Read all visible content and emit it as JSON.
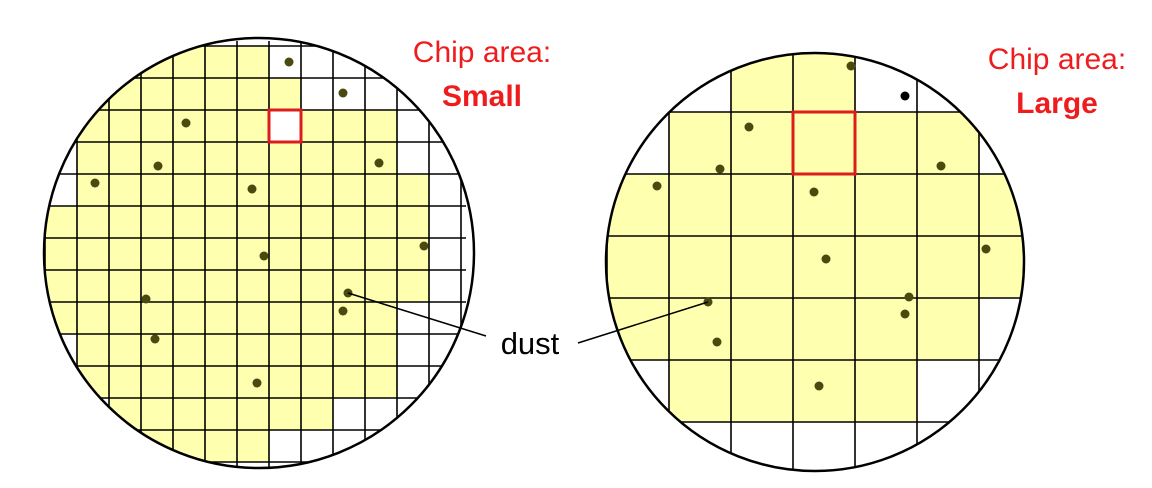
{
  "colors": {
    "chip_fill": "#ffffb0",
    "grid_line": "#000000",
    "highlight": "#dd1c1c",
    "dust_dot": "#4a4a10",
    "label_red": "#ee1c1c"
  },
  "wafer_small": {
    "title": "Chip area:",
    "size_label": "Small",
    "grid": {
      "cols": 13,
      "rows": 13
    },
    "good_chips": [
      [
        2,
        0
      ],
      [
        3,
        0
      ],
      [
        4,
        0
      ],
      [
        5,
        0
      ],
      [
        6,
        0
      ],
      [
        1,
        1
      ],
      [
        2,
        1
      ],
      [
        3,
        1
      ],
      [
        4,
        1
      ],
      [
        5,
        1
      ],
      [
        6,
        1
      ],
      [
        7,
        1
      ],
      [
        1,
        2
      ],
      [
        2,
        2
      ],
      [
        3,
        2
      ],
      [
        4,
        2
      ],
      [
        5,
        2
      ],
      [
        6,
        2
      ],
      [
        8,
        2
      ],
      [
        9,
        2
      ],
      [
        10,
        2
      ],
      [
        1,
        3
      ],
      [
        2,
        3
      ],
      [
        3,
        3
      ],
      [
        4,
        3
      ],
      [
        5,
        3
      ],
      [
        6,
        3
      ],
      [
        7,
        3
      ],
      [
        8,
        3
      ],
      [
        9,
        3
      ],
      [
        10,
        3
      ],
      [
        1,
        4
      ],
      [
        2,
        4
      ],
      [
        3,
        4
      ],
      [
        4,
        4
      ],
      [
        5,
        4
      ],
      [
        6,
        4
      ],
      [
        7,
        4
      ],
      [
        8,
        4
      ],
      [
        9,
        4
      ],
      [
        10,
        4
      ],
      [
        11,
        4
      ],
      [
        0,
        5
      ],
      [
        1,
        5
      ],
      [
        2,
        5
      ],
      [
        3,
        5
      ],
      [
        4,
        5
      ],
      [
        5,
        5
      ],
      [
        6,
        5
      ],
      [
        7,
        5
      ],
      [
        8,
        5
      ],
      [
        9,
        5
      ],
      [
        10,
        5
      ],
      [
        11,
        5
      ],
      [
        0,
        6
      ],
      [
        1,
        6
      ],
      [
        2,
        6
      ],
      [
        3,
        6
      ],
      [
        4,
        6
      ],
      [
        5,
        6
      ],
      [
        6,
        6
      ],
      [
        7,
        6
      ],
      [
        8,
        6
      ],
      [
        9,
        6
      ],
      [
        10,
        6
      ],
      [
        11,
        6
      ],
      [
        0,
        7
      ],
      [
        1,
        7
      ],
      [
        2,
        7
      ],
      [
        3,
        7
      ],
      [
        4,
        7
      ],
      [
        5,
        7
      ],
      [
        6,
        7
      ],
      [
        7,
        7
      ],
      [
        8,
        7
      ],
      [
        9,
        7
      ],
      [
        10,
        7
      ],
      [
        11,
        7
      ],
      [
        0,
        8
      ],
      [
        1,
        8
      ],
      [
        2,
        8
      ],
      [
        3,
        8
      ],
      [
        4,
        8
      ],
      [
        5,
        8
      ],
      [
        6,
        8
      ],
      [
        7,
        8
      ],
      [
        8,
        8
      ],
      [
        9,
        8
      ],
      [
        10,
        8
      ],
      [
        1,
        9
      ],
      [
        2,
        9
      ],
      [
        3,
        9
      ],
      [
        4,
        9
      ],
      [
        5,
        9
      ],
      [
        6,
        9
      ],
      [
        7,
        9
      ],
      [
        8,
        9
      ],
      [
        9,
        9
      ],
      [
        10,
        9
      ],
      [
        1,
        10
      ],
      [
        2,
        10
      ],
      [
        3,
        10
      ],
      [
        4,
        10
      ],
      [
        5,
        10
      ],
      [
        6,
        10
      ],
      [
        7,
        10
      ],
      [
        8,
        10
      ],
      [
        9,
        10
      ],
      [
        10,
        10
      ],
      [
        2,
        11
      ],
      [
        3,
        11
      ],
      [
        4,
        11
      ],
      [
        5,
        11
      ],
      [
        6,
        11
      ],
      [
        7,
        11
      ],
      [
        8,
        11
      ],
      [
        3,
        12
      ],
      [
        4,
        12
      ],
      [
        5,
        12
      ],
      [
        6,
        12
      ]
    ],
    "highlighted_chip": [
      7,
      2
    ],
    "dust_count": 16
  },
  "wafer_large": {
    "title": "Chip area:",
    "size_label": "Large",
    "grid": {
      "cols": 7,
      "rows": 7
    },
    "good_chips": [
      [
        2,
        0
      ],
      [
        3,
        0
      ],
      [
        1,
        1
      ],
      [
        2,
        1
      ],
      [
        3,
        1
      ],
      [
        4,
        1
      ],
      [
        5,
        1
      ],
      [
        0,
        2
      ],
      [
        1,
        2
      ],
      [
        2,
        2
      ],
      [
        3,
        2
      ],
      [
        4,
        2
      ],
      [
        5,
        2
      ],
      [
        6,
        2
      ],
      [
        0,
        3
      ],
      [
        1,
        3
      ],
      [
        2,
        3
      ],
      [
        3,
        3
      ],
      [
        4,
        3
      ],
      [
        5,
        3
      ],
      [
        6,
        3
      ],
      [
        0,
        4
      ],
      [
        1,
        4
      ],
      [
        2,
        4
      ],
      [
        3,
        4
      ],
      [
        4,
        4
      ],
      [
        5,
        4
      ],
      [
        1,
        5
      ],
      [
        2,
        5
      ],
      [
        3,
        5
      ],
      [
        4,
        5
      ]
    ],
    "highlighted_chip": [
      3,
      1
    ],
    "dust_count": 16
  },
  "dust_label": "dust"
}
